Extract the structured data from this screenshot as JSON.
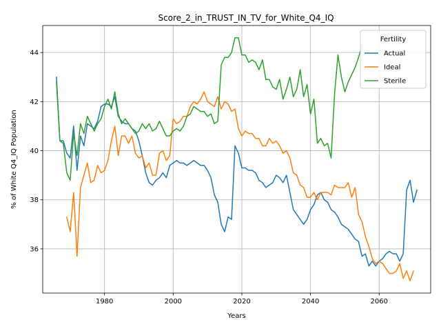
{
  "chart_data": {
    "type": "line",
    "title": "Score_2_in_TRUST_IN_TV_for_White_Q4_IQ",
    "xlabel": "Years",
    "ylabel": "% of White Q4_IQ Population",
    "xlim": [
      1962,
      2075
    ],
    "ylim": [
      34.2,
      45.1
    ],
    "xticks": [
      1980,
      2000,
      2020,
      2040,
      2060
    ],
    "yticks": [
      36,
      38,
      40,
      42,
      44
    ],
    "grid": true,
    "legend": {
      "title": "Fertility",
      "placement": "top-right"
    },
    "series": [
      {
        "name": "Actual",
        "color": "#1f77b4",
        "points": [
          [
            1966,
            43.0
          ],
          [
            1967,
            40.4
          ],
          [
            1968,
            40.4
          ],
          [
            1969,
            39.9
          ],
          [
            1970,
            39.7
          ],
          [
            1971,
            41.0
          ],
          [
            1972,
            39.2
          ],
          [
            1973,
            40.6
          ],
          [
            1974,
            40.2
          ],
          [
            1975,
            41.1
          ],
          [
            1976,
            41.0
          ],
          [
            1977,
            40.9
          ],
          [
            1978,
            41.2
          ],
          [
            1979,
            41.8
          ],
          [
            1980,
            41.9
          ],
          [
            1981,
            41.9
          ],
          [
            1982,
            41.8
          ],
          [
            1983,
            42.2
          ],
          [
            1984,
            41.4
          ],
          [
            1985,
            41.2
          ],
          [
            1986,
            41.1
          ],
          [
            1987,
            41.1
          ],
          [
            1988,
            40.9
          ],
          [
            1989,
            40.8
          ],
          [
            1990,
            40.4
          ],
          [
            1991,
            39.8
          ],
          [
            1992,
            39.1
          ],
          [
            1993,
            38.7
          ],
          [
            1994,
            38.6
          ],
          [
            1995,
            38.8
          ],
          [
            1996,
            38.9
          ],
          [
            1997,
            39.1
          ],
          [
            1998,
            38.9
          ],
          [
            1999,
            39.4
          ],
          [
            2000,
            39.5
          ],
          [
            2001,
            39.6
          ],
          [
            2002,
            39.5
          ],
          [
            2003,
            39.5
          ],
          [
            2004,
            39.4
          ],
          [
            2005,
            39.5
          ],
          [
            2006,
            39.6
          ],
          [
            2007,
            39.5
          ],
          [
            2008,
            39.4
          ],
          [
            2009,
            39.4
          ],
          [
            2010,
            39.2
          ],
          [
            2011,
            38.9
          ],
          [
            2012,
            38.2
          ],
          [
            2013,
            37.9
          ],
          [
            2014,
            37.0
          ],
          [
            2015,
            36.7
          ],
          [
            2016,
            37.3
          ],
          [
            2017,
            37.2
          ],
          [
            2018,
            40.2
          ],
          [
            2019,
            39.9
          ],
          [
            2020,
            39.3
          ],
          [
            2021,
            39.3
          ],
          [
            2022,
            39.2
          ],
          [
            2023,
            39.2
          ],
          [
            2024,
            39.1
          ],
          [
            2025,
            38.8
          ],
          [
            2026,
            38.7
          ],
          [
            2027,
            38.5
          ],
          [
            2028,
            38.6
          ],
          [
            2029,
            38.7
          ],
          [
            2030,
            39.0
          ],
          [
            2031,
            38.9
          ],
          [
            2032,
            38.7
          ],
          [
            2033,
            39.0
          ],
          [
            2034,
            38.3
          ],
          [
            2035,
            37.6
          ],
          [
            2036,
            37.4
          ],
          [
            2037,
            37.2
          ],
          [
            2038,
            37.0
          ],
          [
            2039,
            37.2
          ],
          [
            2040,
            37.6
          ],
          [
            2041,
            37.8
          ],
          [
            2042,
            38.2
          ],
          [
            2043,
            38.3
          ],
          [
            2044,
            38.0
          ],
          [
            2045,
            37.9
          ],
          [
            2046,
            37.6
          ],
          [
            2047,
            37.5
          ],
          [
            2048,
            37.3
          ],
          [
            2049,
            37.0
          ],
          [
            2050,
            36.9
          ],
          [
            2051,
            36.8
          ],
          [
            2052,
            36.6
          ],
          [
            2053,
            36.4
          ],
          [
            2054,
            36.3
          ],
          [
            2055,
            35.7
          ],
          [
            2056,
            35.8
          ],
          [
            2057,
            35.3
          ],
          [
            2058,
            35.5
          ],
          [
            2059,
            35.3
          ],
          [
            2060,
            35.5
          ],
          [
            2061,
            35.6
          ],
          [
            2062,
            35.8
          ],
          [
            2063,
            35.9
          ],
          [
            2064,
            35.8
          ],
          [
            2065,
            35.8
          ],
          [
            2066,
            35.5
          ],
          [
            2067,
            35.8
          ],
          [
            2068,
            38.4
          ],
          [
            2069,
            38.8
          ],
          [
            2070,
            37.9
          ],
          [
            2071,
            38.4
          ]
        ]
      },
      {
        "name": "Ideal",
        "color": "#ff7f0e",
        "points": [
          [
            1969,
            37.3
          ],
          [
            1970,
            36.7
          ],
          [
            1971,
            38.3
          ],
          [
            1972,
            35.7
          ],
          [
            1973,
            38.5
          ],
          [
            1974,
            39.0
          ],
          [
            1975,
            39.5
          ],
          [
            1976,
            38.7
          ],
          [
            1977,
            38.8
          ],
          [
            1978,
            39.4
          ],
          [
            1979,
            39.1
          ],
          [
            1980,
            39.2
          ],
          [
            1981,
            39.6
          ],
          [
            1982,
            40.4
          ],
          [
            1983,
            41.0
          ],
          [
            1984,
            39.8
          ],
          [
            1985,
            40.6
          ],
          [
            1986,
            40.6
          ],
          [
            1987,
            40.3
          ],
          [
            1988,
            40.6
          ],
          [
            1989,
            39.9
          ],
          [
            1990,
            39.7
          ],
          [
            1991,
            39.8
          ],
          [
            1992,
            39.3
          ],
          [
            1993,
            39.5
          ],
          [
            1994,
            39.0
          ],
          [
            1995,
            39.0
          ],
          [
            1996,
            39.9
          ],
          [
            1997,
            40.0
          ],
          [
            1998,
            39.6
          ],
          [
            1999,
            39.8
          ],
          [
            2000,
            41.3
          ],
          [
            2001,
            41.1
          ],
          [
            2002,
            41.2
          ],
          [
            2003,
            41.4
          ],
          [
            2004,
            41.4
          ],
          [
            2005,
            41.8
          ],
          [
            2006,
            42.0
          ],
          [
            2007,
            41.9
          ],
          [
            2008,
            42.1
          ],
          [
            2009,
            42.4
          ],
          [
            2010,
            42.0
          ],
          [
            2011,
            41.9
          ],
          [
            2012,
            41.8
          ],
          [
            2013,
            42.2
          ],
          [
            2014,
            41.7
          ],
          [
            2015,
            42.0
          ],
          [
            2016,
            41.9
          ],
          [
            2017,
            41.6
          ],
          [
            2018,
            41.7
          ],
          [
            2019,
            40.9
          ],
          [
            2020,
            40.6
          ],
          [
            2021,
            40.8
          ],
          [
            2022,
            40.7
          ],
          [
            2023,
            40.7
          ],
          [
            2024,
            40.5
          ],
          [
            2025,
            40.5
          ],
          [
            2026,
            40.2
          ],
          [
            2027,
            40.2
          ],
          [
            2028,
            40.5
          ],
          [
            2029,
            40.3
          ],
          [
            2030,
            40.4
          ],
          [
            2031,
            40.2
          ],
          [
            2032,
            39.9
          ],
          [
            2033,
            40.0
          ],
          [
            2034,
            39.7
          ],
          [
            2035,
            39.1
          ],
          [
            2036,
            39.0
          ],
          [
            2037,
            38.6
          ],
          [
            2038,
            38.5
          ],
          [
            2039,
            38.1
          ],
          [
            2040,
            38.1
          ],
          [
            2041,
            38.3
          ],
          [
            2042,
            38.0
          ],
          [
            2043,
            38.3
          ],
          [
            2044,
            38.3
          ],
          [
            2045,
            38.3
          ],
          [
            2046,
            38.2
          ],
          [
            2047,
            38.6
          ],
          [
            2048,
            38.5
          ],
          [
            2049,
            38.5
          ],
          [
            2050,
            38.5
          ],
          [
            2051,
            38.7
          ],
          [
            2052,
            38.1
          ],
          [
            2053,
            38.5
          ],
          [
            2054,
            37.4
          ],
          [
            2055,
            37.1
          ],
          [
            2056,
            36.5
          ],
          [
            2057,
            36.1
          ],
          [
            2058,
            35.6
          ],
          [
            2059,
            35.4
          ],
          [
            2060,
            35.5
          ],
          [
            2061,
            35.4
          ],
          [
            2062,
            35.2
          ],
          [
            2063,
            35.0
          ],
          [
            2064,
            35.0
          ],
          [
            2065,
            35.1
          ],
          [
            2066,
            35.4
          ],
          [
            2067,
            34.8
          ],
          [
            2068,
            35.1
          ],
          [
            2069,
            34.7
          ],
          [
            2070,
            35.1
          ]
        ]
      },
      {
        "name": "Sterile",
        "color": "#2ca02c",
        "points": [
          [
            1966,
            42.8
          ],
          [
            1967,
            40.4
          ],
          [
            1968,
            40.3
          ],
          [
            1969,
            39.1
          ],
          [
            1970,
            38.8
          ],
          [
            1971,
            40.7
          ],
          [
            1972,
            39.8
          ],
          [
            1973,
            41.1
          ],
          [
            1974,
            40.7
          ],
          [
            1975,
            41.4
          ],
          [
            1976,
            41.1
          ],
          [
            1977,
            40.8
          ],
          [
            1978,
            41.1
          ],
          [
            1979,
            41.3
          ],
          [
            1980,
            41.8
          ],
          [
            1981,
            42.1
          ],
          [
            1982,
            41.7
          ],
          [
            1983,
            42.4
          ],
          [
            1984,
            41.5
          ],
          [
            1985,
            41.1
          ],
          [
            1986,
            41.3
          ],
          [
            1987,
            41.1
          ],
          [
            1988,
            40.9
          ],
          [
            1989,
            40.7
          ],
          [
            1990,
            40.8
          ],
          [
            1991,
            41.1
          ],
          [
            1992,
            40.9
          ],
          [
            1993,
            41.1
          ],
          [
            1994,
            40.8
          ],
          [
            1995,
            40.9
          ],
          [
            1996,
            41.2
          ],
          [
            1997,
            40.9
          ],
          [
            1998,
            40.6
          ],
          [
            1999,
            40.6
          ],
          [
            2000,
            40.8
          ],
          [
            2001,
            40.9
          ],
          [
            2002,
            40.8
          ],
          [
            2003,
            41.0
          ],
          [
            2004,
            41.4
          ],
          [
            2005,
            41.5
          ],
          [
            2006,
            41.8
          ],
          [
            2007,
            41.7
          ],
          [
            2008,
            41.6
          ],
          [
            2009,
            41.6
          ],
          [
            2010,
            41.4
          ],
          [
            2011,
            41.5
          ],
          [
            2012,
            41.1
          ],
          [
            2013,
            41.2
          ],
          [
            2014,
            43.5
          ],
          [
            2015,
            43.8
          ],
          [
            2016,
            43.8
          ],
          [
            2017,
            44.0
          ],
          [
            2018,
            44.6
          ],
          [
            2019,
            44.6
          ],
          [
            2020,
            43.9
          ],
          [
            2021,
            43.9
          ],
          [
            2022,
            43.6
          ],
          [
            2023,
            43.7
          ],
          [
            2024,
            43.6
          ],
          [
            2025,
            43.3
          ],
          [
            2026,
            43.7
          ],
          [
            2027,
            42.9
          ],
          [
            2028,
            42.9
          ],
          [
            2029,
            42.6
          ],
          [
            2030,
            42.5
          ],
          [
            2031,
            42.9
          ],
          [
            2032,
            42.1
          ],
          [
            2033,
            42.5
          ],
          [
            2034,
            43.0
          ],
          [
            2035,
            42.2
          ],
          [
            2036,
            42.5
          ],
          [
            2037,
            43.3
          ],
          [
            2038,
            42.2
          ],
          [
            2039,
            42.7
          ],
          [
            2040,
            41.5
          ],
          [
            2041,
            42.1
          ],
          [
            2042,
            40.3
          ],
          [
            2043,
            40.5
          ],
          [
            2044,
            40.2
          ],
          [
            2045,
            40.3
          ],
          [
            2046,
            39.7
          ],
          [
            2047,
            42.3
          ],
          [
            2048,
            43.9
          ],
          [
            2049,
            43.0
          ],
          [
            2050,
            42.4
          ],
          [
            2051,
            42.8
          ],
          [
            2052,
            43.1
          ],
          [
            2053,
            43.4
          ],
          [
            2054,
            43.8
          ],
          [
            2055,
            44.3
          ]
        ]
      }
    ]
  }
}
